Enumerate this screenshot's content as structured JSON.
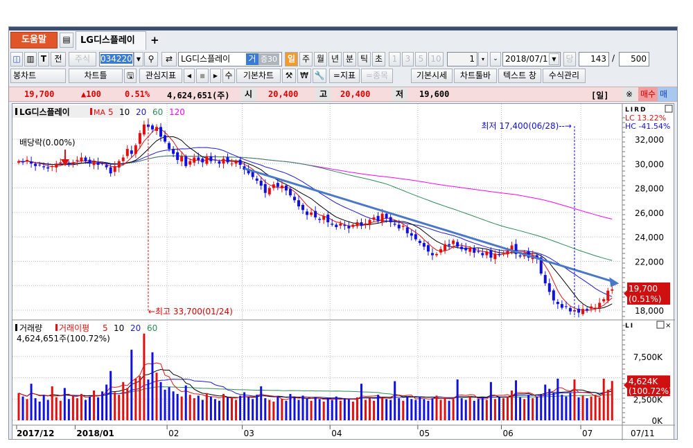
{
  "tabs": {
    "help": "도움말",
    "active": "LG디스플레이",
    "add": "+"
  },
  "toolbar1": {
    "all": "전",
    "stock": "주식",
    "code": "034220",
    "name": "LG디스플레이",
    "trade_badge": "거",
    "margin_badge": "증30",
    "periods": [
      "일",
      "주",
      "월",
      "년",
      "분",
      "틱",
      "초"
    ],
    "intervals": [
      "1",
      "3",
      "5",
      "10"
    ],
    "spin": "1",
    "date": "2018/07/11",
    "dang": "당",
    "count": "143",
    "slash": "/",
    "total": "500"
  },
  "toolbar2": {
    "chart_type": "봉차트",
    "chart_frame": "차트틀",
    "interest": "관심지표",
    "su": "수",
    "basic_chart": "기본차트",
    "won": "₩",
    "indicator": "=지표",
    "item": "=종목",
    "basic_quote": "기본시세",
    "toolbar": "차트툴바",
    "text_window": "텍스트 창",
    "formula": "수식관리"
  },
  "info": {
    "price": "19,700",
    "change": "▲100",
    "rate": "0.51%",
    "volume": "4,624,651(주)",
    "open_label": "시",
    "open": "20,400",
    "high_label": "고",
    "high": "20,400",
    "low_label": "저",
    "low": "19,600",
    "period": "[일]",
    "star": "※",
    "buy": "매수",
    "sell": "매도"
  },
  "price_panel": {
    "title": "LG디스플레이",
    "ma_label": "MA",
    "ma_periods": [
      "5",
      "10",
      "20",
      "60",
      "120"
    ],
    "ex_div": "배당락(0.00%)",
    "max_note": "←최고 33,700(01/24)",
    "min_note": "최저 17,400(06/28)--→",
    "lc": "LC  13.22%",
    "hc": "HC -41.54%",
    "flags": "LIRD",
    "cur_price": "19,700",
    "cur_rate": "(0.51%)"
  },
  "volume_panel": {
    "title": "거래량",
    "ma_title": "거래이평",
    "ma_periods": [
      "5",
      "10",
      "20",
      "60"
    ],
    "summary": "4,624,651주(100.72%)",
    "flags": "LI",
    "cur_vol": "4,624K",
    "cur_rate": "(100.72%)"
  },
  "x_axis": {
    "labels": [
      "2017/12",
      "2018/01",
      "02",
      "03",
      "04",
      "05",
      "06",
      "07"
    ],
    "last_date": "07/11"
  },
  "colors": {
    "up": "#e01010",
    "down": "#1010e0",
    "ma5": "#e01010",
    "ma10": "#000000",
    "ma20": "#1a1ae0",
    "ma60": "#2e8b57",
    "ma120": "#ff00ff",
    "trend": "#4a78c8"
  },
  "chart_data": {
    "type": "candlestick",
    "y_ticks": [
      32000,
      30000,
      28000,
      26000,
      24000,
      22000,
      20000,
      18000
    ],
    "ylim": [
      17400,
      34000
    ],
    "vol_ticks": [
      "7,500K",
      "5,000K",
      "2,500K",
      "0K"
    ],
    "vol_tick_values": [
      7500,
      5000,
      2500,
      0
    ],
    "month_starts": [
      0,
      14,
      36,
      54,
      75,
      96,
      116,
      135
    ],
    "close": [
      30200,
      30100,
      30300,
      30000,
      29800,
      29900,
      29700,
      29600,
      29800,
      30000,
      30100,
      30200,
      30000,
      30100,
      30300,
      30500,
      30200,
      30000,
      30100,
      29900,
      30000,
      29700,
      29200,
      29800,
      30200,
      30500,
      31200,
      30800,
      31500,
      32500,
      33200,
      33000,
      32800,
      33000,
      32200,
      31800,
      31200,
      30800,
      30300,
      30600,
      29800,
      30200,
      30500,
      30300,
      30100,
      30600,
      30200,
      30300,
      30000,
      30400,
      30100,
      30000,
      30200,
      29900,
      29500,
      29200,
      28900,
      28600,
      28200,
      27600,
      28000,
      28300,
      28100,
      28200,
      27800,
      27400,
      27000,
      26500,
      26200,
      25800,
      26000,
      25600,
      25400,
      25700,
      25200,
      25000,
      24800,
      25100,
      24900,
      24700,
      25000,
      25200,
      24900,
      25100,
      25400,
      25600,
      25300,
      25900,
      25500,
      25200,
      25000,
      24700,
      24900,
      24300,
      24100,
      23800,
      23500,
      23200,
      22800,
      22500,
      22600,
      23000,
      23400,
      23300,
      23700,
      23200,
      23000,
      22900,
      23100,
      22700,
      22800,
      22500,
      22800,
      22300,
      22600,
      22500,
      22700,
      22900,
      23300,
      22600,
      22400,
      22700,
      22300,
      22500,
      22200,
      21000,
      20200,
      19500,
      18800,
      18500,
      18200,
      18300,
      17900,
      18000,
      17800,
      18100,
      18000,
      18300,
      18200,
      18600,
      18900,
      19600,
      19700
    ],
    "volume_k": [
      3200,
      2800,
      2500,
      4300,
      2600,
      2200,
      3000,
      2400,
      4000,
      2700,
      2300,
      3800,
      2500,
      2900,
      2600,
      3100,
      2400,
      2800,
      3500,
      2700,
      3400,
      4200,
      5800,
      3300,
      3000,
      4500,
      3800,
      8300,
      4900,
      5200,
      10200,
      4800,
      8000,
      5600,
      4500,
      3600,
      3900,
      3400,
      3100,
      2800,
      4100,
      3000,
      2600,
      2900,
      2400,
      3200,
      2800,
      2500,
      2300,
      3100,
      2700,
      2600,
      2400,
      2900,
      3300,
      2700,
      2500,
      3000,
      4000,
      2600,
      2400,
      2200,
      2800,
      2500,
      2300,
      3100,
      2700,
      2400,
      2900,
      2600,
      2300,
      2700,
      2500,
      2200,
      2600,
      2400,
      2800,
      2300,
      2600,
      2500,
      2200,
      2700,
      4300,
      2400,
      2600,
      2300,
      3000,
      2700,
      2500,
      2400,
      4600,
      2600,
      2300,
      2800,
      2500,
      2400,
      2800,
      2500,
      2300,
      2600,
      2900,
      2400,
      2700,
      2300,
      2500,
      4800,
      2600,
      2400,
      2800,
      2300,
      2500,
      2600,
      2400,
      4500,
      2500,
      2700,
      2600,
      2800,
      3500,
      4700,
      2700,
      2500,
      3000,
      2600,
      2800,
      3100,
      4200,
      3700,
      3300,
      4900,
      3000,
      2800,
      3200,
      4800,
      2700,
      2900,
      2600,
      2800,
      3000,
      2700,
      4900,
      3600,
      4624
    ],
    "annotations": {
      "max": {
        "index": 31,
        "value": 33700
      },
      "min": {
        "index": 133,
        "value": 17400
      }
    },
    "trendline": {
      "from": {
        "index": 54,
        "value": 29600
      },
      "to": {
        "index": 142,
        "value": 20300
      }
    }
  }
}
